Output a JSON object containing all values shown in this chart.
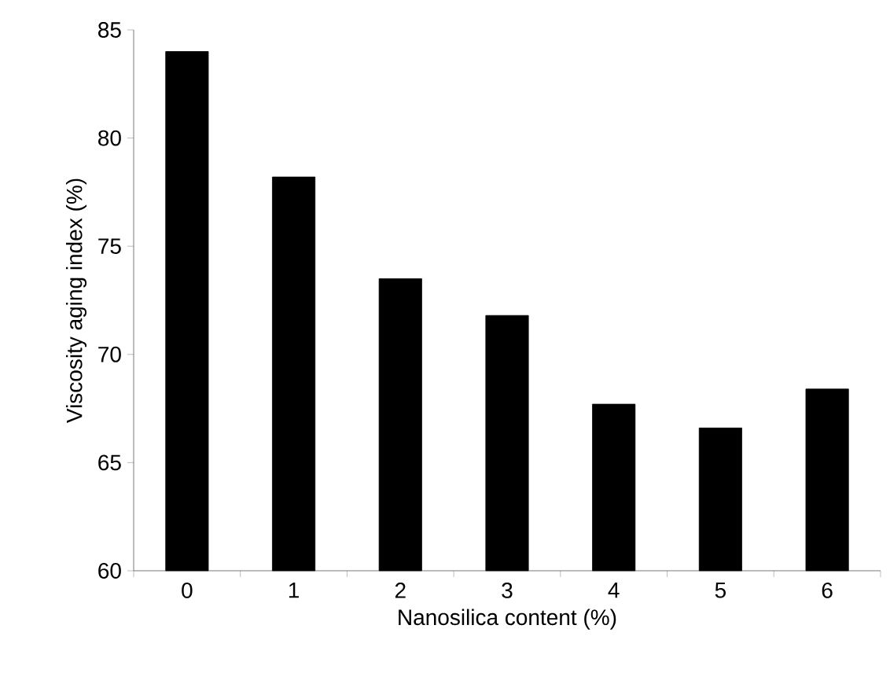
{
  "chart_data": {
    "type": "bar",
    "xlabel": "Nanosilica content (%)",
    "ylabel": "Viscosity aging index (%)",
    "categories": [
      "0",
      "1",
      "2",
      "3",
      "4",
      "5",
      "6"
    ],
    "values": [
      84.0,
      78.2,
      73.5,
      71.8,
      67.7,
      66.6,
      68.4
    ],
    "color": "#000000",
    "ylim": [
      60,
      85
    ],
    "yticks": [
      60,
      65,
      70,
      75,
      80,
      85
    ],
    "grid": false
  }
}
